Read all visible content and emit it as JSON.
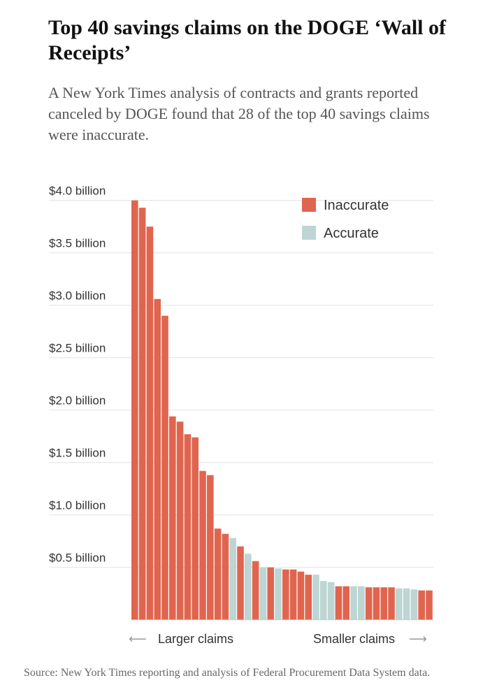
{
  "header": {
    "title": "Top 40 savings claims on the DOGE ‘Wall of Receipts’",
    "subtitle": "A New York Times analysis of contracts and grants reported canceled by DOGE found that 28 of the top 40 savings claims were inaccurate."
  },
  "chart_data": {
    "type": "bar",
    "ylabel": "",
    "xlabel": "",
    "ylim": [
      0,
      4.0
    ],
    "yticks": [
      0.5,
      1.0,
      1.5,
      2.0,
      2.5,
      3.0,
      3.5,
      4.0
    ],
    "ytick_labels": [
      "$0.5 billion",
      "$1.0 billion",
      "$1.5 billion",
      "$2.0 billion",
      "$2.5 billion",
      "$3.0 billion",
      "$3.5 billion",
      "$4.0 billion"
    ],
    "grid": true,
    "legend_position": "top-right",
    "series": [
      {
        "name": "Inaccurate",
        "color": "#e0654f"
      },
      {
        "name": "Accurate",
        "color": "#bdd5d3"
      }
    ],
    "values": [
      4.0,
      3.93,
      3.75,
      3.06,
      2.9,
      1.94,
      1.89,
      1.77,
      1.74,
      1.42,
      1.38,
      0.87,
      0.82,
      0.78,
      0.7,
      0.63,
      0.56,
      0.5,
      0.5,
      0.49,
      0.48,
      0.48,
      0.46,
      0.43,
      0.43,
      0.37,
      0.36,
      0.32,
      0.32,
      0.32,
      0.32,
      0.31,
      0.31,
      0.31,
      0.31,
      0.3,
      0.3,
      0.29,
      0.28,
      0.28
    ],
    "status": [
      "Inaccurate",
      "Inaccurate",
      "Inaccurate",
      "Inaccurate",
      "Inaccurate",
      "Inaccurate",
      "Inaccurate",
      "Inaccurate",
      "Inaccurate",
      "Inaccurate",
      "Inaccurate",
      "Inaccurate",
      "Inaccurate",
      "Accurate",
      "Inaccurate",
      "Accurate",
      "Inaccurate",
      "Accurate",
      "Inaccurate",
      "Accurate",
      "Inaccurate",
      "Inaccurate",
      "Inaccurate",
      "Inaccurate",
      "Accurate",
      "Accurate",
      "Accurate",
      "Inaccurate",
      "Inaccurate",
      "Accurate",
      "Accurate",
      "Inaccurate",
      "Inaccurate",
      "Inaccurate",
      "Inaccurate",
      "Accurate",
      "Accurate",
      "Accurate",
      "Inaccurate",
      "Inaccurate"
    ],
    "x_annotations": {
      "left": "Larger claims",
      "right": "Smaller claims"
    }
  },
  "footer": {
    "source": "Source: New York Times reporting and analysis of Federal Procurement Data System data."
  }
}
